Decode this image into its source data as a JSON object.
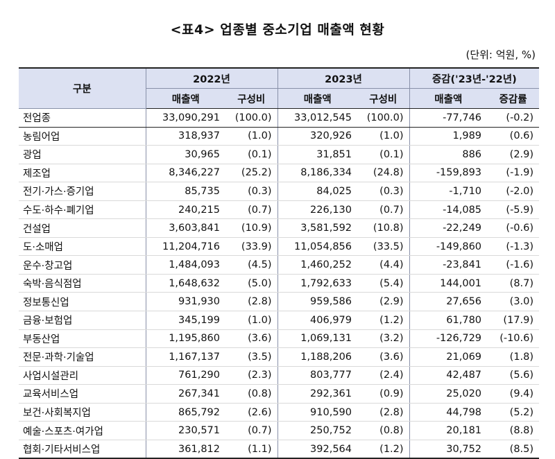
{
  "title": "<표4> 업종별 중소기업 매출액 현황",
  "unit": "(단위: 억원, %)",
  "header": {
    "category": "구분",
    "y2022": "2022년",
    "y2023": "2023년",
    "change": "증감('23년-'22년)",
    "sales": "매출액",
    "share": "구성비",
    "change_sales": "매출액",
    "change_rate": "증감률"
  },
  "rows": [
    {
      "cat": "전업종",
      "s22": "33,090,291",
      "p22": "(100.0)",
      "s23": "33,012,545",
      "p23": "(100.0)",
      "cs": "-77,746",
      "cr": "(-0.2)"
    },
    {
      "cat": "농림어업",
      "s22": "318,937",
      "p22": "(1.0)",
      "s23": "320,926",
      "p23": "(1.0)",
      "cs": "1,989",
      "cr": "(0.6)"
    },
    {
      "cat": "광업",
      "s22": "30,965",
      "p22": "(0.1)",
      "s23": "31,851",
      "p23": "(0.1)",
      "cs": "886",
      "cr": "(2.9)"
    },
    {
      "cat": "제조업",
      "s22": "8,346,227",
      "p22": "(25.2)",
      "s23": "8,186,334",
      "p23": "(24.8)",
      "cs": "-159,893",
      "cr": "(-1.9)"
    },
    {
      "cat": "전기·가스·증기업",
      "s22": "85,735",
      "p22": "(0.3)",
      "s23": "84,025",
      "p23": "(0.3)",
      "cs": "-1,710",
      "cr": "(-2.0)"
    },
    {
      "cat": "수도·하수·폐기업",
      "s22": "240,215",
      "p22": "(0.7)",
      "s23": "226,130",
      "p23": "(0.7)",
      "cs": "-14,085",
      "cr": "(-5.9)"
    },
    {
      "cat": "건설업",
      "s22": "3,603,841",
      "p22": "(10.9)",
      "s23": "3,581,592",
      "p23": "(10.8)",
      "cs": "-22,249",
      "cr": "(-0.6)"
    },
    {
      "cat": "도·소매업",
      "s22": "11,204,716",
      "p22": "(33.9)",
      "s23": "11,054,856",
      "p23": "(33.5)",
      "cs": "-149,860",
      "cr": "(-1.3)"
    },
    {
      "cat": "운수·창고업",
      "s22": "1,484,093",
      "p22": "(4.5)",
      "s23": "1,460,252",
      "p23": "(4.4)",
      "cs": "-23,841",
      "cr": "(-1.6)"
    },
    {
      "cat": "숙박·음식점업",
      "s22": "1,648,632",
      "p22": "(5.0)",
      "s23": "1,792,633",
      "p23": "(5.4)",
      "cs": "144,001",
      "cr": "(8.7)"
    },
    {
      "cat": "정보통신업",
      "s22": "931,930",
      "p22": "(2.8)",
      "s23": "959,586",
      "p23": "(2.9)",
      "cs": "27,656",
      "cr": "(3.0)"
    },
    {
      "cat": "금융·보험업",
      "s22": "345,199",
      "p22": "(1.0)",
      "s23": "406,979",
      "p23": "(1.2)",
      "cs": "61,780",
      "cr": "(17.9)"
    },
    {
      "cat": "부동산업",
      "s22": "1,195,860",
      "p22": "(3.6)",
      "s23": "1,069,131",
      "p23": "(3.2)",
      "cs": "-126,729",
      "cr": "(-10.6)"
    },
    {
      "cat": "전문·과학·기술업",
      "s22": "1,167,137",
      "p22": "(3.5)",
      "s23": "1,188,206",
      "p23": "(3.6)",
      "cs": "21,069",
      "cr": "(1.8)"
    },
    {
      "cat": "사업시설관리",
      "s22": "761,290",
      "p22": "(2.3)",
      "s23": "803,777",
      "p23": "(2.4)",
      "cs": "42,487",
      "cr": "(5.6)"
    },
    {
      "cat": "교육서비스업",
      "s22": "267,341",
      "p22": "(0.8)",
      "s23": "292,361",
      "p23": "(0.9)",
      "cs": "25,020",
      "cr": "(9.4)"
    },
    {
      "cat": "보건·사회복지업",
      "s22": "865,792",
      "p22": "(2.6)",
      "s23": "910,590",
      "p23": "(2.8)",
      "cs": "44,798",
      "cr": "(5.2)"
    },
    {
      "cat": "예술·스포츠·여가업",
      "s22": "230,571",
      "p22": "(0.7)",
      "s23": "250,752",
      "p23": "(0.8)",
      "cs": "20,181",
      "cr": "(8.8)"
    },
    {
      "cat": "협회·기타서비스업",
      "s22": "361,812",
      "p22": "(1.1)",
      "s23": "392,564",
      "p23": "(1.2)",
      "cs": "30,752",
      "cr": "(8.5)"
    }
  ]
}
